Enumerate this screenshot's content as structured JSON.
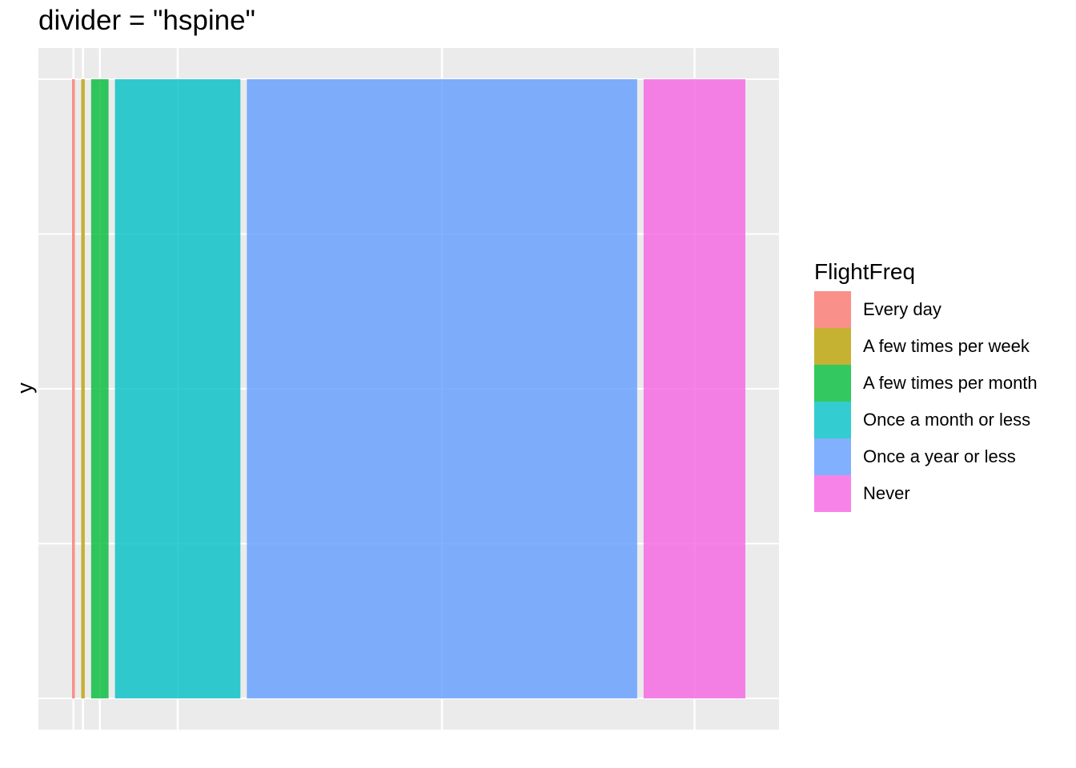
{
  "chart_data": {
    "type": "bar",
    "subtype": "horizontal spine (hspine) product plot",
    "title": "divider = \"hspine\"",
    "xlabel": "",
    "ylabel": "y",
    "legend_title": "FlightFreq",
    "legend_position": "right",
    "grid": true,
    "panel_background": "#EBEBEB",
    "categories": [
      "Every day",
      "A few times per week",
      "A few times per month",
      "Once a month or less",
      "Once a year or less",
      "Never"
    ],
    "values": [
      0.004,
      0.005,
      0.025,
      0.18,
      0.56,
      0.146
    ],
    "colors": [
      "#F8766D",
      "#B79F00",
      "#00BA38",
      "#00BFC4",
      "#619CFF",
      "#F564E3"
    ]
  }
}
